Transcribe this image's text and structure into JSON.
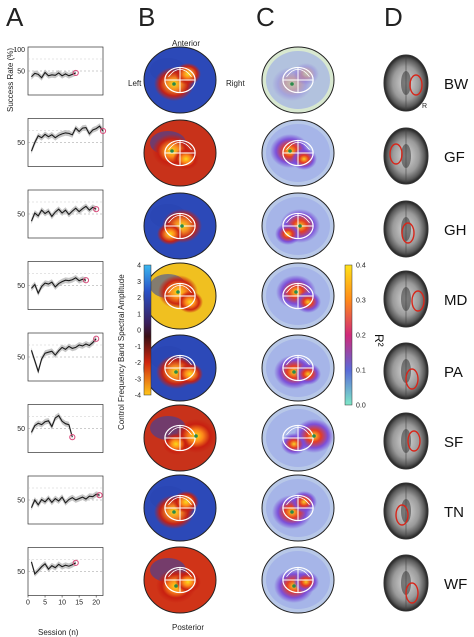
{
  "panel_letters": {
    "a": "A",
    "b": "B",
    "c": "C",
    "d": "D"
  },
  "orientation": {
    "anterior": "Anterior",
    "posterior": "Posterior",
    "left": "Left",
    "right": "Right",
    "r": "R"
  },
  "colorbar_b": {
    "label": "Control Frequency Band Spectral Amplitude",
    "ticks": [
      "4",
      "3",
      "2",
      "1",
      "0",
      "-1",
      "-2",
      "-3",
      "-4"
    ]
  },
  "colorbar_c": {
    "label": "R²",
    "ticks": [
      "0.4",
      "0.3",
      "0.2",
      "0.1",
      "0.0"
    ]
  },
  "colors": {
    "series_line": "#1a1a1a",
    "band": "#bdbdbd",
    "highlight": "#d94a7a",
    "hot": "#ffd21f",
    "cold": "#2b3f9e"
  },
  "chart_data": {
    "type": "line",
    "ylabel": "Success Rate (%)",
    "xlabel": "Session (n)",
    "xlim": [
      0,
      22
    ],
    "ylim": [
      0,
      100
    ],
    "x_ticks": [
      "0",
      "5",
      "10",
      "15",
      "20"
    ],
    "y_ticks_first": [
      "100",
      "50"
    ],
    "y_tick_other": "50",
    "series": [
      {
        "name": "BW",
        "x": [
          1,
          2,
          3,
          4,
          5,
          6,
          7,
          8,
          9,
          10,
          11,
          12,
          13,
          14
        ],
        "values": [
          38,
          45,
          43,
          36,
          47,
          40,
          42,
          41,
          46,
          40,
          44,
          40,
          43,
          46
        ]
      },
      {
        "name": "GF",
        "x": [
          1,
          2,
          3,
          4,
          5,
          6,
          7,
          8,
          9,
          10,
          11,
          12,
          13,
          14,
          15,
          16,
          17,
          18,
          19,
          20,
          21,
          22
        ],
        "values": [
          32,
          50,
          64,
          60,
          67,
          62,
          66,
          60,
          65,
          68,
          70,
          69,
          66,
          80,
          73,
          80,
          81,
          68,
          76,
          79,
          84,
          74
        ]
      },
      {
        "name": "GH",
        "x": [
          1,
          2,
          3,
          4,
          5,
          6,
          7,
          8,
          9,
          10,
          11,
          12,
          13,
          14,
          15,
          16,
          17,
          18,
          19,
          20
        ],
        "values": [
          35,
          52,
          46,
          58,
          51,
          56,
          45,
          54,
          60,
          52,
          58,
          49,
          56,
          62,
          55,
          61,
          66,
          58,
          64,
          60
        ]
      },
      {
        "name": "MD",
        "x": [
          1,
          2,
          3,
          4,
          5,
          6,
          7,
          8,
          9,
          10,
          11,
          12,
          13,
          14,
          15,
          16,
          17
        ],
        "values": [
          44,
          52,
          34,
          48,
          55,
          53,
          57,
          47,
          54,
          58,
          61,
          60,
          62,
          66,
          60,
          63,
          61
        ]
      },
      {
        "name": "PA",
        "x": [
          1,
          2,
          3,
          4,
          5,
          6,
          7,
          8,
          9,
          10,
          11,
          12,
          13,
          14,
          15,
          16,
          17,
          18,
          19,
          20
        ],
        "values": [
          64,
          42,
          20,
          46,
          58,
          60,
          62,
          54,
          63,
          70,
          66,
          72,
          68,
          70,
          75,
          73,
          77,
          74,
          80,
          88
        ]
      },
      {
        "name": "SF",
        "x": [
          1,
          2,
          3,
          4,
          5,
          6,
          7,
          8,
          9,
          10,
          11,
          12,
          13
        ],
        "values": [
          42,
          56,
          61,
          58,
          64,
          66,
          54,
          72,
          77,
          65,
          60,
          58,
          32
        ]
      },
      {
        "name": "TN",
        "x": [
          1,
          2,
          3,
          4,
          5,
          6,
          7,
          8,
          9,
          10,
          11,
          12,
          13,
          14,
          15,
          16,
          17,
          18,
          19,
          20,
          21
        ],
        "values": [
          34,
          50,
          40,
          51,
          46,
          54,
          45,
          53,
          48,
          56,
          44,
          51,
          55,
          50,
          53,
          56,
          52,
          58,
          57,
          62,
          60
        ]
      },
      {
        "name": "WF",
        "x": [
          1,
          2,
          3,
          4,
          5,
          6,
          7,
          8,
          9,
          10,
          11,
          12,
          13,
          14
        ],
        "values": [
          70,
          45,
          52,
          60,
          66,
          55,
          62,
          58,
          65,
          60,
          63,
          61,
          64,
          68
        ]
      }
    ]
  },
  "subjects": [
    "BW",
    "GF",
    "GH",
    "MD",
    "PA",
    "SF",
    "TN",
    "WF"
  ]
}
